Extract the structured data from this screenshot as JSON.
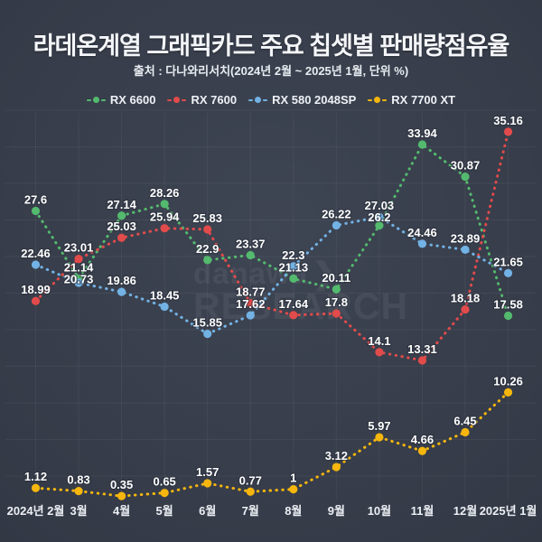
{
  "header": {
    "title": "라데온계열 그래픽카드 주요 칩셋별 판매량점유율",
    "subtitle": "출처 : 다나와리서치(2024년 2월 ~ 2025년 1월, 단위 %)"
  },
  "watermark": {
    "line1": "danawa",
    "chevron": "❯",
    "line2": "RESEARCH"
  },
  "colors": {
    "background": "#383e4b",
    "grid": "rgba(255,255,255,0.055)",
    "label_text": "#ffffff",
    "axis_text": "#edf0f5"
  },
  "chart_data": {
    "type": "line",
    "line_style": "dotted",
    "grid": true,
    "legend_position": "top",
    "point_labels_shown": true,
    "ylim": [
      0,
      38
    ],
    "categories": [
      "2024년 2월",
      "3월",
      "4월",
      "5월",
      "6월",
      "7월",
      "8월",
      "9월",
      "10월",
      "11월",
      "12월",
      "2025년 1월"
    ],
    "series": [
      {
        "name": "RX 6600",
        "color": "#53ba6e",
        "values": [
          27.6,
          21.14,
          27.14,
          28.26,
          22.9,
          23.37,
          21.13,
          20.11,
          26.2,
          33.94,
          30.87,
          17.58
        ]
      },
      {
        "name": "RX 7600",
        "color": "#e24b4b",
        "values": [
          18.99,
          23.01,
          25.03,
          25.94,
          25.83,
          18.77,
          17.64,
          17.8,
          14.1,
          13.31,
          18.18,
          35.16
        ]
      },
      {
        "name": "RX 580 2048SP",
        "color": "#72b2e4",
        "values": [
          22.46,
          20.73,
          19.86,
          18.45,
          15.85,
          17.62,
          22.3,
          26.22,
          27.03,
          24.46,
          23.89,
          21.65
        ]
      },
      {
        "name": "RX 7700 XT",
        "color": "#f6b60e",
        "values": [
          1.12,
          0.83,
          0.35,
          0.65,
          1.57,
          0.77,
          1,
          3.12,
          5.97,
          4.66,
          6.45,
          10.26
        ]
      }
    ]
  }
}
